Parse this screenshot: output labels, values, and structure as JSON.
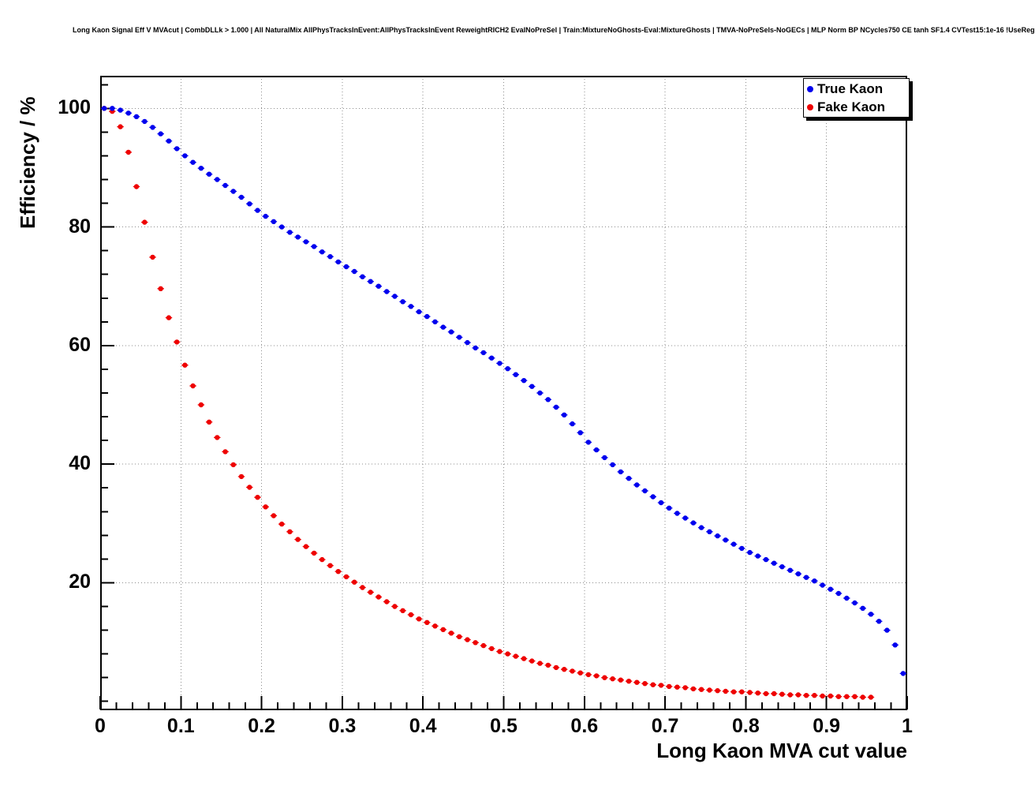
{
  "chart_data": {
    "type": "scatter",
    "title": "Long Kaon Signal Eff V MVAcut | CombDLLk > 1.000 | All NaturalMix AllPhysTracksInEvent:AllPhysTracksInEvent ReweightRICH2 EvalNoPreSel | Train:MixtureNoGhosts-Eval:MixtureGhosts | TMVA-NoPreSels-NoGECs | MLP Norm BP NCycles750 CE tanh SF1.4 CVTest15:1e-16 !UseReg",
    "xlabel": "Long Kaon MVA cut value",
    "ylabel": "Efficiency / %",
    "xlim": [
      0,
      1
    ],
    "ylim": [
      -1.5,
      105.5
    ],
    "grid": true,
    "grid_style": "dotted",
    "legend_position": "top-right",
    "frame_color": "#000000",
    "x_ticks": {
      "values": [
        0,
        0.1,
        0.2,
        0.3,
        0.4,
        0.5,
        0.6,
        0.7,
        0.8,
        0.9,
        1
      ],
      "labels": [
        "0",
        "0.1",
        "0.2",
        "0.3",
        "0.4",
        "0.5",
        "0.6",
        "0.7",
        "0.8",
        "0.9",
        "1"
      ],
      "minor_step": 0.02
    },
    "y_ticks": {
      "values": [
        20,
        40,
        60,
        80,
        100
      ],
      "labels": [
        "20",
        "40",
        "60",
        "80",
        "100"
      ],
      "minor_step": 4
    },
    "x_start": 0.005,
    "x_step": 0.01,
    "series": [
      {
        "name": "True Kaon",
        "color": "#0000ee",
        "marker": "filled-circle",
        "values": [
          100,
          100,
          99.7,
          99.2,
          98.6,
          97.8,
          96.8,
          95.7,
          94.5,
          93.2,
          92,
          90.9,
          89.9,
          88.9,
          88,
          87,
          86,
          85,
          83.9,
          82.8,
          81.8,
          80.9,
          80,
          79.1,
          78.3,
          77.5,
          76.7,
          75.8,
          75,
          74.1,
          73.3,
          72.5,
          71.6,
          70.8,
          70,
          69.1,
          68.3,
          67.4,
          66.6,
          65.7,
          64.9,
          64,
          63.1,
          62.3,
          61.4,
          60.5,
          59.6,
          58.8,
          57.9,
          57,
          56.1,
          55.1,
          54.1,
          53.1,
          52,
          50.9,
          49.6,
          48.3,
          46.8,
          45.3,
          43.7,
          42.4,
          41.1,
          39.9,
          38.7,
          37.6,
          36.5,
          35.5,
          34.5,
          33.5,
          32.6,
          31.7,
          30.9,
          30.1,
          29.3,
          28.6,
          27.9,
          27.2,
          26.5,
          25.8,
          25.1,
          24.5,
          23.9,
          23.3,
          22.7,
          22.1,
          21.5,
          20.9,
          20.3,
          19.6,
          18.9,
          18.2,
          17.4,
          16.6,
          15.7,
          14.7,
          13.5,
          12,
          9.5,
          4.7
        ]
      },
      {
        "name": "Fake Kaon",
        "color": "#ee0000",
        "marker": "filled-circle",
        "values": [
          100,
          99.5,
          96.9,
          92.6,
          86.8,
          80.8,
          74.9,
          69.6,
          64.7,
          60.6,
          56.7,
          53.2,
          50,
          47.1,
          44.5,
          42.1,
          39.9,
          37.9,
          36.1,
          34.4,
          32.8,
          31.3,
          29.9,
          28.6,
          27.3,
          26.1,
          25,
          23.9,
          22.9,
          21.9,
          21,
          20.1,
          19.2,
          18.4,
          17.6,
          16.8,
          16,
          15.3,
          14.6,
          13.9,
          13.3,
          12.7,
          12.1,
          11.5,
          10.9,
          10.4,
          9.9,
          9.4,
          8.9,
          8.4,
          8,
          7.6,
          7.2,
          6.8,
          6.4,
          6.1,
          5.7,
          5.4,
          5.1,
          4.8,
          4.5,
          4.3,
          4,
          3.8,
          3.6,
          3.4,
          3.2,
          3,
          2.8,
          2.7,
          2.5,
          2.4,
          2.3,
          2.1,
          2,
          1.9,
          1.8,
          1.7,
          1.6,
          1.6,
          1.5,
          1.4,
          1.3,
          1.3,
          1.2,
          1.1,
          1.1,
          1,
          1,
          0.9,
          0.9,
          0.8,
          0.8,
          0.8,
          0.7,
          0.7
        ]
      }
    ]
  }
}
